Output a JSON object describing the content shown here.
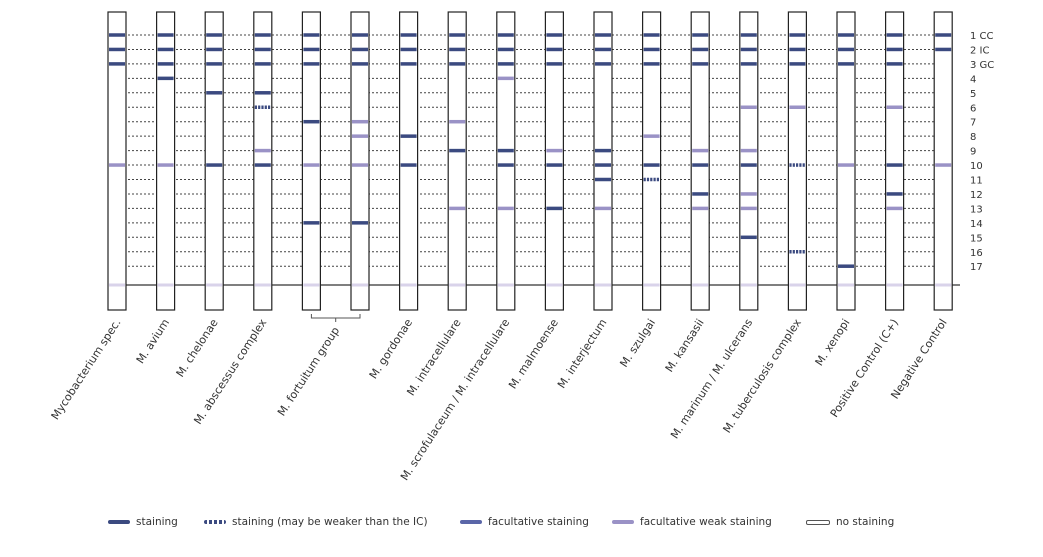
{
  "positions": [
    {
      "id": 1,
      "label": "1 CC"
    },
    {
      "id": 2,
      "label": "2 IC"
    },
    {
      "id": 3,
      "label": "3 GC"
    },
    {
      "id": 4,
      "label": "4"
    },
    {
      "id": 5,
      "label": "5"
    },
    {
      "id": 6,
      "label": "6"
    },
    {
      "id": 7,
      "label": "7"
    },
    {
      "id": 8,
      "label": "8"
    },
    {
      "id": 9,
      "label": "9"
    },
    {
      "id": 10,
      "label": "10"
    },
    {
      "id": 11,
      "label": "11"
    },
    {
      "id": 12,
      "label": "12"
    },
    {
      "id": 13,
      "label": "13"
    },
    {
      "id": 14,
      "label": "14"
    },
    {
      "id": 15,
      "label": "15"
    },
    {
      "id": 16,
      "label": "16"
    },
    {
      "id": 17,
      "label": "17"
    }
  ],
  "strips": [
    {
      "label": "Mycobacterium spec.",
      "bands": [
        [
          1,
          "s"
        ],
        [
          2,
          "s"
        ],
        [
          3,
          "s"
        ],
        [
          10,
          "w"
        ]
      ]
    },
    {
      "label": "M. avium",
      "bands": [
        [
          1,
          "s"
        ],
        [
          2,
          "s"
        ],
        [
          3,
          "s"
        ],
        [
          4,
          "s"
        ],
        [
          10,
          "w"
        ]
      ]
    },
    {
      "label": "M. chelonae",
      "bands": [
        [
          1,
          "s"
        ],
        [
          2,
          "s"
        ],
        [
          3,
          "s"
        ],
        [
          5,
          "s"
        ],
        [
          10,
          "s"
        ]
      ]
    },
    {
      "label": "M. abscessus complex",
      "bands": [
        [
          1,
          "s"
        ],
        [
          2,
          "s"
        ],
        [
          3,
          "s"
        ],
        [
          5,
          "s"
        ],
        [
          6,
          "d"
        ],
        [
          9,
          "w"
        ],
        [
          10,
          "s"
        ]
      ]
    },
    {
      "label": "",
      "bands": [
        [
          1,
          "s"
        ],
        [
          2,
          "s"
        ],
        [
          3,
          "s"
        ],
        [
          7,
          "s"
        ],
        [
          10,
          "w"
        ],
        [
          14,
          "s"
        ]
      ]
    },
    {
      "label": "",
      "bands": [
        [
          1,
          "s"
        ],
        [
          2,
          "s"
        ],
        [
          3,
          "s"
        ],
        [
          7,
          "w"
        ],
        [
          8,
          "w"
        ],
        [
          10,
          "w"
        ],
        [
          14,
          "s"
        ]
      ]
    },
    {
      "label": "M. gordonae",
      "bands": [
        [
          1,
          "s"
        ],
        [
          2,
          "s"
        ],
        [
          3,
          "s"
        ],
        [
          8,
          "s"
        ],
        [
          10,
          "s"
        ]
      ]
    },
    {
      "label": "M. intracellulare",
      "bands": [
        [
          1,
          "s"
        ],
        [
          2,
          "s"
        ],
        [
          3,
          "s"
        ],
        [
          7,
          "w"
        ],
        [
          9,
          "s"
        ],
        [
          13,
          "w"
        ]
      ]
    },
    {
      "label": "M. scrofulaceum / M. intracellulare",
      "bands": [
        [
          1,
          "s"
        ],
        [
          2,
          "s"
        ],
        [
          3,
          "s"
        ],
        [
          4,
          "w"
        ],
        [
          9,
          "s"
        ],
        [
          10,
          "s"
        ],
        [
          13,
          "w"
        ]
      ]
    },
    {
      "label": "M. malmoense",
      "bands": [
        [
          1,
          "s"
        ],
        [
          2,
          "s"
        ],
        [
          3,
          "s"
        ],
        [
          9,
          "w"
        ],
        [
          10,
          "s"
        ],
        [
          13,
          "s"
        ]
      ]
    },
    {
      "label": "M. interjectum",
      "bands": [
        [
          1,
          "s"
        ],
        [
          2,
          "s"
        ],
        [
          3,
          "s"
        ],
        [
          9,
          "s"
        ],
        [
          10,
          "s"
        ],
        [
          11,
          "s"
        ],
        [
          13,
          "w"
        ]
      ]
    },
    {
      "label": "M. szulgai",
      "bands": [
        [
          1,
          "s"
        ],
        [
          2,
          "s"
        ],
        [
          3,
          "s"
        ],
        [
          8,
          "w"
        ],
        [
          10,
          "s"
        ],
        [
          11,
          "d"
        ]
      ]
    },
    {
      "label": "M. kansasii",
      "bands": [
        [
          1,
          "s"
        ],
        [
          2,
          "s"
        ],
        [
          3,
          "s"
        ],
        [
          9,
          "w"
        ],
        [
          10,
          "s"
        ],
        [
          12,
          "s"
        ],
        [
          13,
          "w"
        ]
      ]
    },
    {
      "label": "M. marinum / M. ulcerans",
      "bands": [
        [
          1,
          "s"
        ],
        [
          2,
          "s"
        ],
        [
          3,
          "s"
        ],
        [
          6,
          "w"
        ],
        [
          9,
          "w"
        ],
        [
          10,
          "s"
        ],
        [
          12,
          "w"
        ],
        [
          13,
          "w"
        ],
        [
          15,
          "s"
        ]
      ]
    },
    {
      "label": "M. tuberculosis complex",
      "bands": [
        [
          1,
          "s"
        ],
        [
          2,
          "s"
        ],
        [
          3,
          "s"
        ],
        [
          6,
          "w"
        ],
        [
          10,
          "d"
        ],
        [
          16,
          "d"
        ]
      ]
    },
    {
      "label": "M. xenopi",
      "bands": [
        [
          1,
          "s"
        ],
        [
          2,
          "s"
        ],
        [
          3,
          "s"
        ],
        [
          10,
          "w"
        ],
        [
          17,
          "s"
        ]
      ]
    },
    {
      "label": "Positive Control (C+)",
      "bands": [
        [
          1,
          "s"
        ],
        [
          2,
          "s"
        ],
        [
          3,
          "s"
        ],
        [
          6,
          "w"
        ],
        [
          10,
          "s"
        ],
        [
          12,
          "s"
        ],
        [
          13,
          "w"
        ]
      ]
    },
    {
      "label": "Negative Control",
      "bands": [
        [
          1,
          "s"
        ],
        [
          2,
          "s"
        ],
        [
          10,
          "w"
        ]
      ]
    }
  ],
  "group_label": {
    "text": "M. fortuitum group",
    "strips": [
      4,
      5
    ]
  },
  "band_colors": {
    "s": "#3b4a80",
    "d": "#3b4a80",
    "f": "#5a66a8",
    "w": "#9a92c6",
    "line": "#d9d3ea"
  },
  "legend": {
    "staining": "staining",
    "staining_weaker": "staining (may be weaker than the IC)",
    "facultative": "facultative staining",
    "facultative_weak": "facultative weak staining",
    "none": "no staining"
  }
}
